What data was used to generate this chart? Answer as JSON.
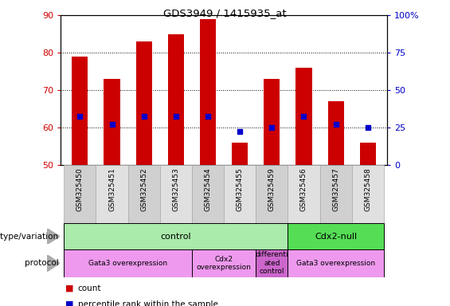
{
  "title": "GDS3949 / 1415935_at",
  "samples": [
    "GSM325450",
    "GSM325451",
    "GSM325452",
    "GSM325453",
    "GSM325454",
    "GSM325455",
    "GSM325459",
    "GSM325456",
    "GSM325457",
    "GSM325458"
  ],
  "counts": [
    79,
    73,
    83,
    85,
    89,
    56,
    73,
    76,
    67,
    56
  ],
  "percentile_ranks": [
    63,
    61,
    63,
    63,
    63,
    59,
    60,
    63,
    61,
    60
  ],
  "ylim": [
    50,
    90
  ],
  "yticks_left": [
    50,
    60,
    70,
    80,
    90
  ],
  "yticks_right": [
    0,
    25,
    50,
    75,
    100
  ],
  "bar_color": "#cc0000",
  "dot_color": "#0000cc",
  "bar_width": 0.5,
  "genotype_groups": [
    {
      "label": "control",
      "start": 0,
      "end": 7,
      "color": "#aaeaaa"
    },
    {
      "label": "Cdx2-null",
      "start": 7,
      "end": 10,
      "color": "#55dd55"
    }
  ],
  "protocol_groups": [
    {
      "label": "Gata3 overexpression",
      "start": 0,
      "end": 4,
      "color": "#ee99ee"
    },
    {
      "label": "Cdx2\noverexpression",
      "start": 4,
      "end": 6,
      "color": "#ee99ee"
    },
    {
      "label": "differenti\nated\ncontrol",
      "start": 6,
      "end": 7,
      "color": "#cc66cc"
    },
    {
      "label": "Gata3 overexpression",
      "start": 7,
      "end": 10,
      "color": "#ee99ee"
    }
  ],
  "legend_count_label": "count",
  "legend_pct_label": "percentile rank within the sample",
  "left_tick_color": "#cc0000",
  "right_tick_color": "#0000cc",
  "sample_box_colors": [
    "#d0d0d0",
    "#e0e0e0"
  ]
}
